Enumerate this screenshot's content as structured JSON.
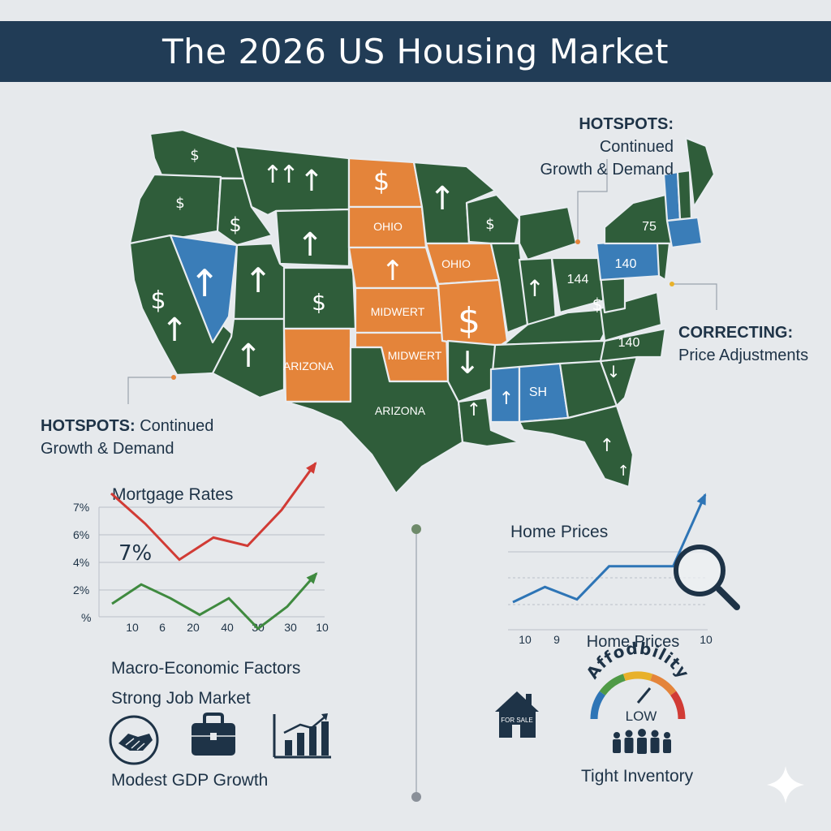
{
  "title": "The 2026 US Housing Market",
  "callouts": {
    "hotspots_top": {
      "heading": "HOTSPOTS:",
      "line1": "Continued",
      "line2": "Growth & Demand"
    },
    "hotspots_left": {
      "heading": "HOTSPOTS:",
      "line1": "Continued",
      "line2": "Growth & Demand"
    },
    "correcting": {
      "heading": "CORRECTING:",
      "line1": "Price Adjustments"
    }
  },
  "map": {
    "colors": {
      "green": "#2f5d3a",
      "orange": "#e4843a",
      "blue": "#3a7db8",
      "border": "#e8ece8"
    },
    "labels": [
      "OHIO",
      "OHIO",
      "MIDWERT",
      "MIDWERT",
      "ARIZONA",
      "ARIZONA",
      "140",
      "144",
      "75",
      "140",
      "SH"
    ],
    "dollar": "$",
    "up_arrow": "↑",
    "down_arrow": "↓"
  },
  "mortgage_chart": {
    "title": "Mortgage Rates",
    "y_ticks": [
      "7%",
      "6%",
      "4%",
      "2%",
      "%"
    ],
    "x_ticks": [
      "10",
      "6",
      "20",
      "40",
      "30",
      "30",
      "10"
    ],
    "annotation": "7%",
    "series": [
      {
        "color": "#d13b35",
        "values": [
          7.5,
          6.4,
          5.1,
          5.9,
          5.6,
          6.9,
          8.6
        ]
      },
      {
        "color": "#3f8a3f",
        "values": [
          3.5,
          4.2,
          3.7,
          3.1,
          3.7,
          2.6,
          3.4,
          4.6
        ]
      }
    ]
  },
  "home_chart": {
    "title": "Home Prices",
    "x_label": "Home Prices",
    "x_ticks": [
      "10",
      "9",
      "10"
    ],
    "series": [
      {
        "color": "#2e75b6",
        "values": [
          2.0,
          3.1,
          2.2,
          4.6,
          4.6,
          4.6,
          9.8
        ]
      }
    ]
  },
  "factors": {
    "heading": "Macro-Economic Factors",
    "job": "Strong Job Market",
    "gdp": "Modest GDP Growth",
    "icons": [
      "handshake-icon",
      "briefcase-icon",
      "bar-chart-icon"
    ]
  },
  "affordability": {
    "arc_label": "Affodbility",
    "gauge_label": "LOW",
    "sale_sign": "FOR SALE",
    "inventory": "Tight Inventory",
    "gauge_colors": [
      "#2e75b6",
      "#4f9a46",
      "#e8b12a",
      "#e4843a",
      "#d13b35"
    ]
  }
}
